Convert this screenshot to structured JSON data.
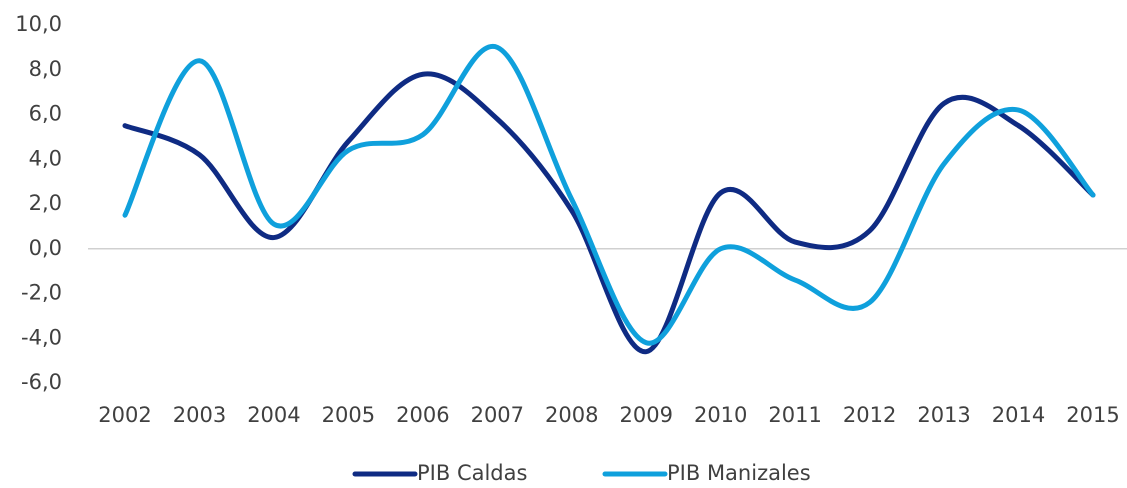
{
  "chart_data": {
    "type": "line",
    "categories": [
      "2002",
      "2003",
      "2004",
      "2005",
      "2006",
      "2007",
      "2008",
      "2009",
      "2010",
      "2011",
      "2012",
      "2013",
      "2014",
      "2015"
    ],
    "series": [
      {
        "name": "PIB Caldas",
        "color": "#0f2b83",
        "values": [
          5.5,
          4.2,
          0.5,
          4.8,
          7.8,
          5.8,
          1.7,
          -4.6,
          2.5,
          0.3,
          0.8,
          6.5,
          5.5,
          2.4
        ]
      },
      {
        "name": "PIB Manizales",
        "color": "#0fa0dc",
        "values": [
          1.5,
          8.4,
          1.1,
          4.4,
          5.1,
          9.0,
          2.2,
          -4.2,
          0.0,
          -1.4,
          -2.4,
          3.8,
          6.2,
          2.4
        ]
      }
    ],
    "ylim": [
      -6,
      10
    ],
    "yticks": [
      {
        "value": -6,
        "label": "-6,0"
      },
      {
        "value": -4,
        "label": "-4,0"
      },
      {
        "value": -2,
        "label": "-2,0"
      },
      {
        "value": 0,
        "label": "0,0"
      },
      {
        "value": 2,
        "label": "2,0"
      },
      {
        "value": 4,
        "label": "4,0"
      },
      {
        "value": 6,
        "label": "6,0"
      },
      {
        "value": 8,
        "label": "8,0"
      },
      {
        "value": 10,
        "label": "10,0"
      }
    ],
    "legend": "bottom"
  }
}
